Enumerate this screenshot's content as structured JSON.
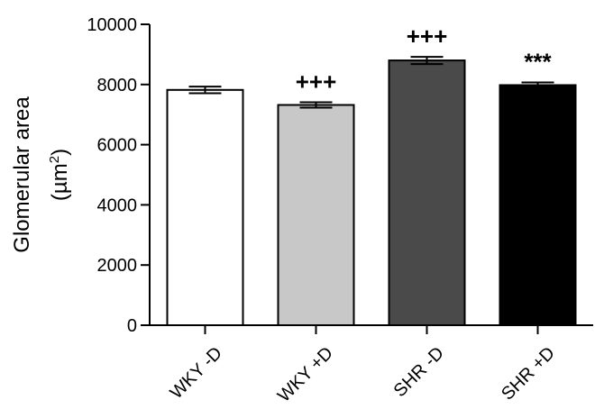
{
  "chart_data": {
    "type": "bar",
    "title": "",
    "xlabel": "",
    "ylabel_line1": "Glomerular area",
    "ylabel_line2_open": "(",
    "ylabel_line2_unit": "µm",
    "ylabel_line2_sup": "2",
    "ylabel_line2_close": ")",
    "ylim": [
      0,
      10000
    ],
    "yticks": [
      0,
      2000,
      4000,
      6000,
      8000,
      10000
    ],
    "ytick_labels": [
      "0",
      "2000",
      "4000",
      "6000",
      "8000",
      "10000"
    ],
    "categories": [
      "WKY -D",
      "WKY +D",
      "SHR -D",
      "SHR +D"
    ],
    "values": [
      7820,
      7320,
      8800,
      7980
    ],
    "errors": [
      110,
      90,
      120,
      90
    ],
    "annotations": [
      "",
      "+++",
      "+++",
      "***"
    ],
    "colors": [
      "#ffffff",
      "#c8c8c8",
      "#4a4a4a",
      "#000000"
    ],
    "bar_edge_color": "#000000",
    "grid": false
  }
}
